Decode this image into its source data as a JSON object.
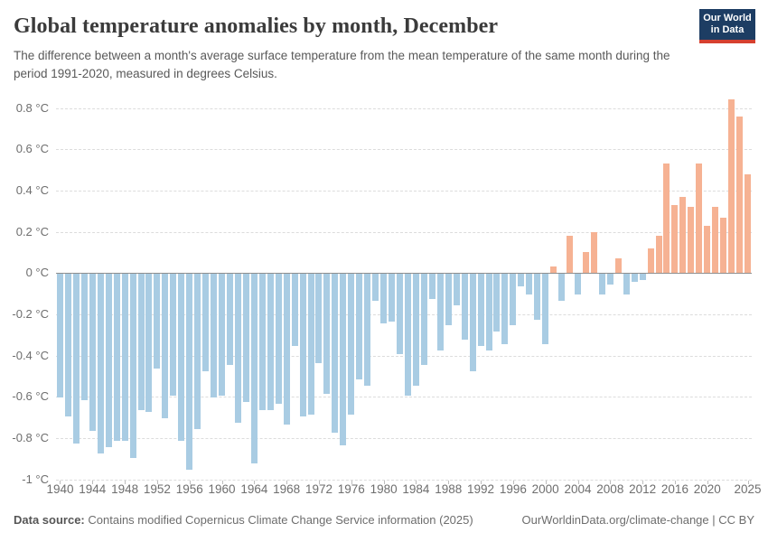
{
  "header": {
    "title": "Global temperature anomalies by month, December",
    "subtitle": "The difference between a month's average surface temperature from the mean temperature of the same month during the period 1991-2020, measured in degrees Celsius.",
    "logo": {
      "line1": "Our World",
      "line2": "in Data"
    }
  },
  "chart_data": {
    "type": "bar",
    "title": "Global temperature anomalies by month, December",
    "ylabel": "",
    "xlabel": "",
    "unit": "°C",
    "ylim": [
      -1.0,
      0.9
    ],
    "grid": "horizontal dashed",
    "baseline": 0,
    "colors": {
      "positive": "#f6b293",
      "negative": "#a9cce3"
    },
    "yticks": [
      {
        "value": 0.8,
        "label": "0.8 °C"
      },
      {
        "value": 0.6,
        "label": "0.6 °C"
      },
      {
        "value": 0.4,
        "label": "0.4 °C"
      },
      {
        "value": 0.2,
        "label": "0.2 °C"
      },
      {
        "value": 0,
        "label": "0 °C"
      },
      {
        "value": -0.2,
        "label": "-0.2 °C"
      },
      {
        "value": -0.4,
        "label": "-0.4 °C"
      },
      {
        "value": -0.6,
        "label": "-0.6 °C"
      },
      {
        "value": -0.8,
        "label": "-0.8 °C"
      },
      {
        "value": -1,
        "label": "-1 °C"
      }
    ],
    "xticks": [
      1940,
      1944,
      1948,
      1952,
      1956,
      1960,
      1964,
      1968,
      1972,
      1976,
      1980,
      1984,
      1988,
      1992,
      1996,
      2000,
      2004,
      2008,
      2012,
      2016,
      2020,
      2025
    ],
    "x": [
      1940,
      1941,
      1942,
      1943,
      1944,
      1945,
      1946,
      1947,
      1948,
      1949,
      1950,
      1951,
      1952,
      1953,
      1954,
      1955,
      1956,
      1957,
      1958,
      1959,
      1960,
      1961,
      1962,
      1963,
      1964,
      1965,
      1966,
      1967,
      1968,
      1969,
      1970,
      1971,
      1972,
      1973,
      1974,
      1975,
      1976,
      1977,
      1978,
      1979,
      1980,
      1981,
      1982,
      1983,
      1984,
      1985,
      1986,
      1987,
      1988,
      1989,
      1990,
      1991,
      1992,
      1993,
      1994,
      1995,
      1996,
      1997,
      1998,
      1999,
      2000,
      2001,
      2002,
      2003,
      2004,
      2005,
      2006,
      2007,
      2008,
      2009,
      2010,
      2011,
      2012,
      2013,
      2014,
      2015,
      2016,
      2017,
      2018,
      2019,
      2020,
      2021,
      2022,
      2023,
      2024,
      2025
    ],
    "values": [
      -0.6,
      -0.69,
      -0.82,
      -0.61,
      -0.76,
      -0.87,
      -0.84,
      -0.81,
      -0.81,
      -0.89,
      -0.66,
      -0.67,
      -0.46,
      -0.7,
      -0.59,
      -0.81,
      -0.95,
      -0.75,
      -0.47,
      -0.6,
      -0.59,
      -0.44,
      -0.72,
      -0.62,
      -0.92,
      -0.66,
      -0.66,
      -0.63,
      -0.73,
      -0.35,
      -0.69,
      -0.68,
      -0.43,
      -0.58,
      -0.77,
      -0.83,
      -0.68,
      -0.51,
      -0.54,
      -0.13,
      -0.24,
      -0.23,
      -0.39,
      -0.59,
      -0.54,
      -0.44,
      -0.12,
      -0.37,
      -0.25,
      -0.15,
      -0.32,
      -0.47,
      -0.35,
      -0.37,
      -0.28,
      -0.34,
      -0.25,
      -0.06,
      -0.1,
      -0.22,
      -0.34,
      0.03,
      -0.13,
      0.18,
      -0.1,
      0.1,
      0.2,
      -0.1,
      -0.05,
      0.07,
      -0.1,
      -0.04,
      -0.03,
      0.12,
      0.18,
      0.53,
      0.33,
      0.37,
      0.32,
      0.53,
      0.23,
      0.32,
      0.27,
      0.84,
      0.76,
      0.48
    ]
  },
  "footer": {
    "source_label": "Data source:",
    "source_text": "Contains modified Copernicus Climate Change Service information (2025)",
    "link": "OurWorldinData.org/climate-change",
    "separator": " | ",
    "license": "CC BY"
  }
}
